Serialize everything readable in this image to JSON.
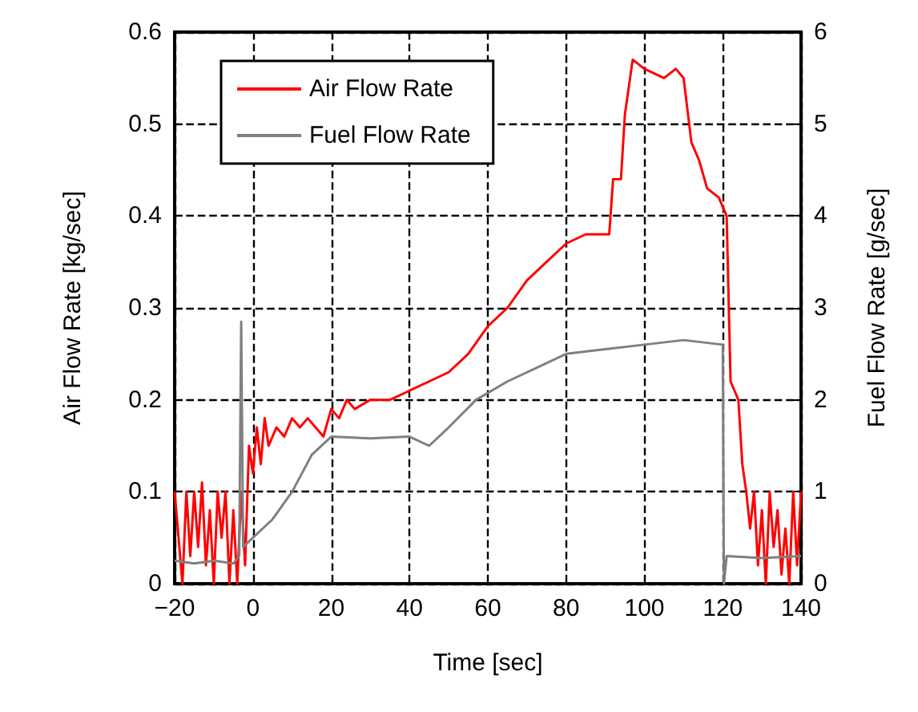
{
  "chart_data": {
    "type": "line",
    "xlabel": "Time [sec]",
    "ylabel": "Air Flow Rate [kg/sec]",
    "y2label": "Fuel Flow Rate [g/sec]",
    "xlim": [
      -20,
      140
    ],
    "xticks": [
      {
        "value": -20,
        "label": "−20"
      },
      0,
      20,
      40,
      60,
      80,
      100,
      120,
      140
    ],
    "ylim": [
      0,
      0.6
    ],
    "yticks": [
      0.0,
      0.1,
      0.2,
      0.3,
      0.4,
      0.5,
      0.6
    ],
    "y2lim": [
      0,
      6
    ],
    "y2ticks": [
      0,
      1,
      2,
      3,
      4,
      5,
      6
    ],
    "grid": true,
    "legend": "top left",
    "marker": "none",
    "line_style": "solid",
    "series": [
      {
        "name": "Air Flow Rate",
        "color": "#ff0000",
        "x": [
          -20,
          -19,
          -18,
          -17,
          -16,
          -15,
          -14,
          -13,
          -12,
          -11,
          -10,
          -9,
          -8,
          -7,
          -6,
          -5,
          -4,
          -3,
          -2,
          -1,
          0,
          1,
          2,
          3,
          4,
          6,
          8,
          10,
          12,
          14,
          16,
          18,
          20,
          22,
          24,
          26,
          30,
          35,
          40,
          45,
          50,
          55,
          60,
          65,
          70,
          75,
          80,
          85,
          90,
          91,
          92,
          94,
          95,
          97,
          100,
          105,
          108,
          110,
          112,
          114,
          116,
          119,
          121,
          122,
          124,
          125,
          126,
          127,
          128,
          129,
          130,
          131,
          132,
          133,
          134,
          135,
          136,
          137,
          138,
          139,
          140
        ],
        "values": [
          0.1,
          0.05,
          0.0,
          0.1,
          0.03,
          0.1,
          0.04,
          0.11,
          0.02,
          0.08,
          0.0,
          0.1,
          0.05,
          0.1,
          0.0,
          0.08,
          0.0,
          0.1,
          0.02,
          0.15,
          0.12,
          0.17,
          0.13,
          0.18,
          0.15,
          0.17,
          0.16,
          0.18,
          0.17,
          0.18,
          0.17,
          0.16,
          0.19,
          0.18,
          0.2,
          0.19,
          0.2,
          0.2,
          0.21,
          0.22,
          0.23,
          0.25,
          0.28,
          0.3,
          0.33,
          0.35,
          0.37,
          0.38,
          0.38,
          0.38,
          0.44,
          0.44,
          0.51,
          0.57,
          0.56,
          0.55,
          0.56,
          0.55,
          0.48,
          0.46,
          0.43,
          0.42,
          0.4,
          0.22,
          0.2,
          0.13,
          0.1,
          0.06,
          0.1,
          0.02,
          0.08,
          0.0,
          0.1,
          0.04,
          0.08,
          0.01,
          0.06,
          0.0,
          0.1,
          0.02,
          0.1
        ]
      },
      {
        "name": "Fuel Flow Rate",
        "color": "#808080",
        "axis": "y2",
        "x": [
          -20,
          -15,
          -10,
          -5,
          -3.5,
          -3,
          -2.5,
          0,
          5,
          10,
          15,
          20,
          30,
          40,
          45,
          50,
          57,
          65,
          75,
          80,
          90,
          100,
          110,
          120,
          120.3,
          121,
          130,
          140
        ],
        "values": [
          0.25,
          0.22,
          0.25,
          0.22,
          0.3,
          2.85,
          0.4,
          0.5,
          0.7,
          1.0,
          1.4,
          1.6,
          1.58,
          1.6,
          1.5,
          1.7,
          2.0,
          2.2,
          2.4,
          2.5,
          2.55,
          2.6,
          2.65,
          2.6,
          0.0,
          0.3,
          0.28,
          0.3
        ]
      }
    ]
  }
}
